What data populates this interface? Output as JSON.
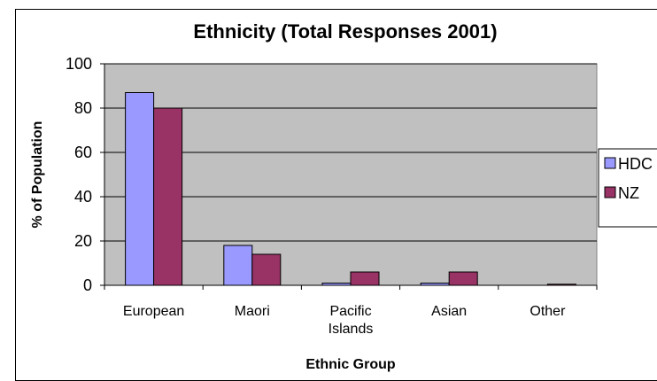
{
  "chart_data": {
    "type": "bar",
    "title": "Ethnicity (Total Responses 2001)",
    "xlabel": "Ethnic Group",
    "ylabel": "% of Population",
    "ylim": [
      0,
      100
    ],
    "yticks": [
      0,
      20,
      40,
      60,
      80,
      100
    ],
    "categories": [
      "European",
      "Maori",
      "Pacific Islands",
      "Asian",
      "Other"
    ],
    "category_lines": [
      [
        "European"
      ],
      [
        "Maori"
      ],
      [
        "Pacific",
        "Islands"
      ],
      [
        "Asian"
      ],
      [
        "Other"
      ]
    ],
    "series": [
      {
        "name": "HDC",
        "values": [
          87,
          18,
          1,
          1,
          0
        ],
        "color": "#9999ff"
      },
      {
        "name": "NZ",
        "values": [
          80,
          14,
          6,
          6,
          0.5
        ],
        "color": "#993366"
      }
    ],
    "grid": true,
    "plot_background": "#c0c0c0",
    "legend_position": "right"
  }
}
